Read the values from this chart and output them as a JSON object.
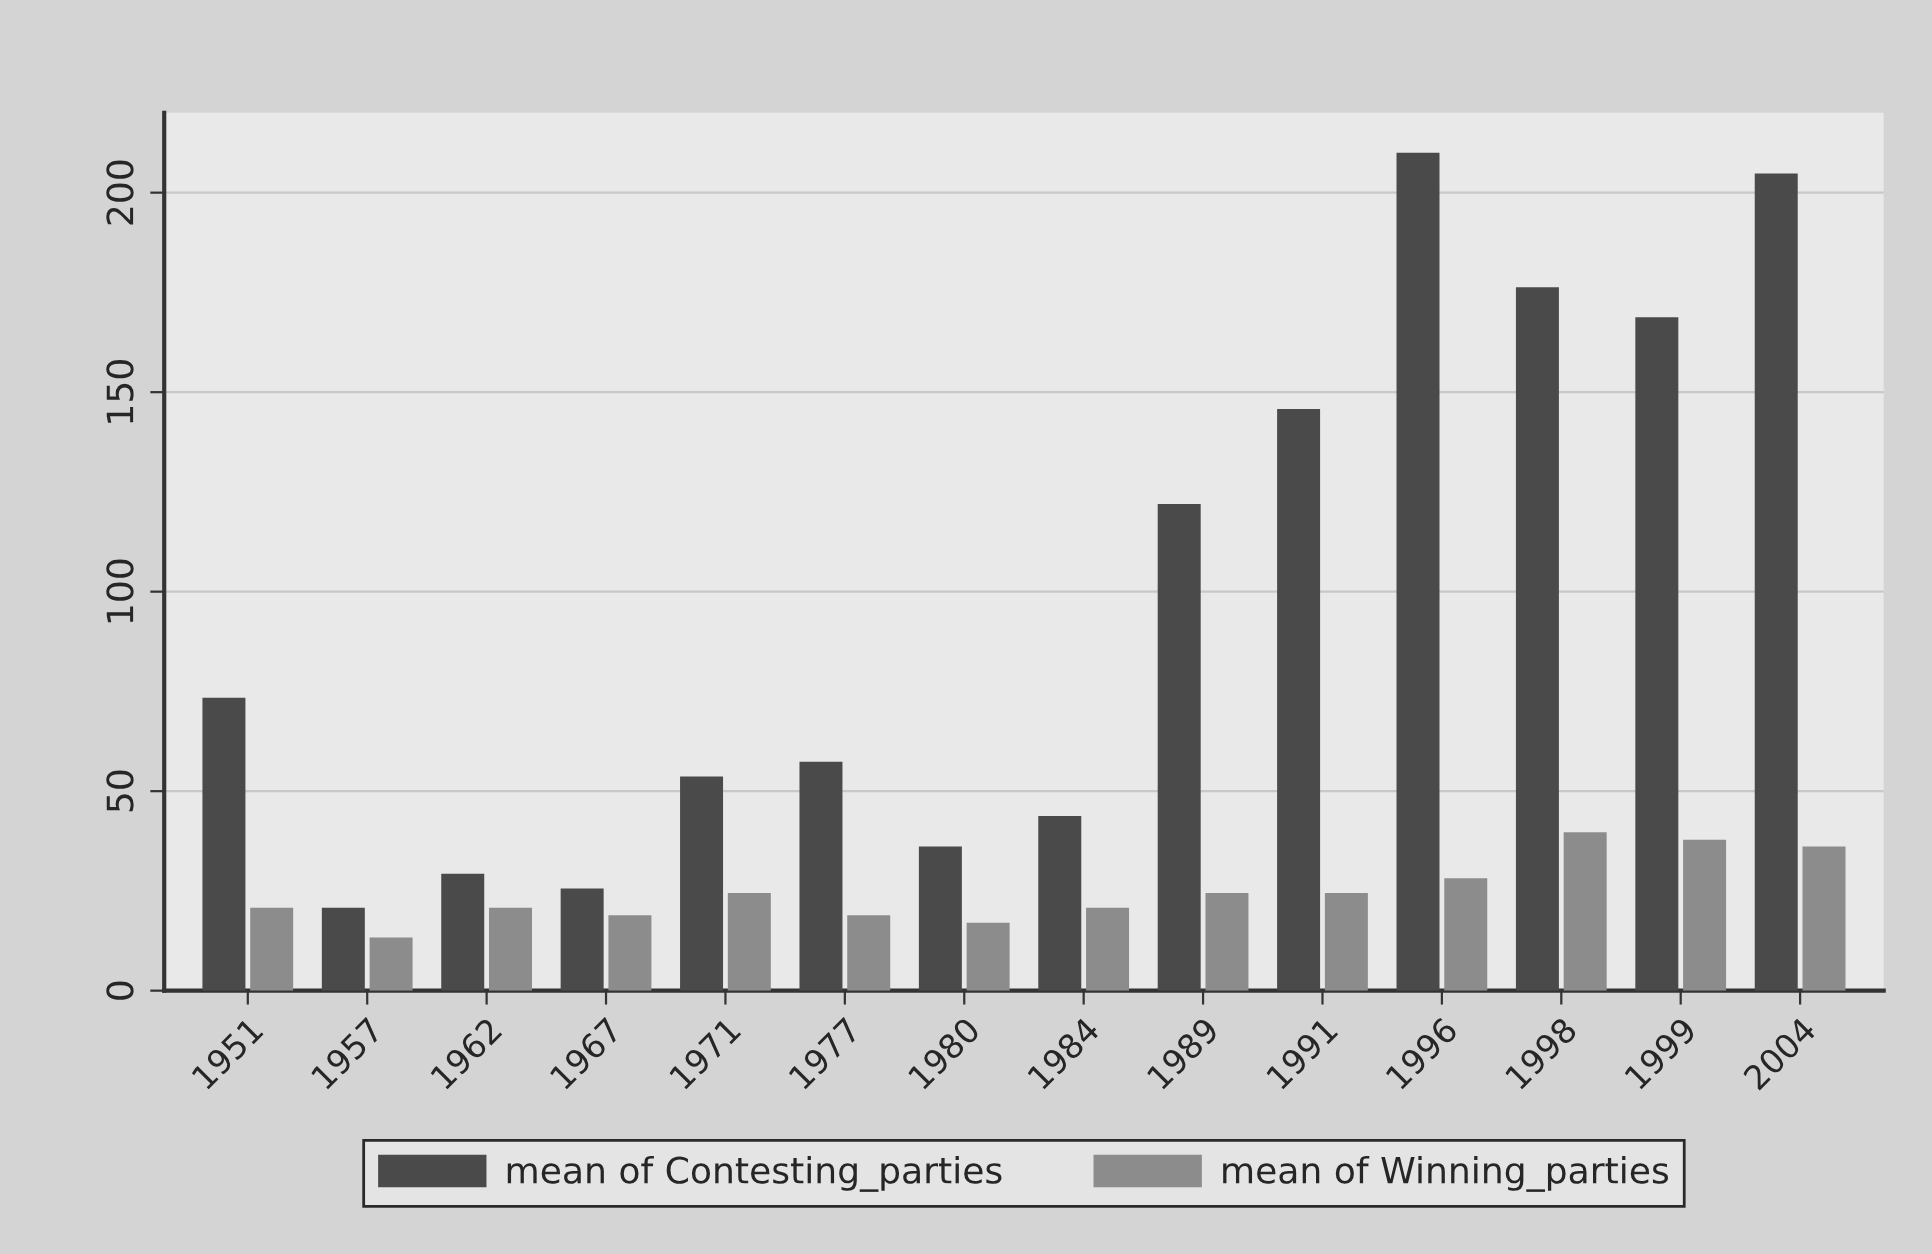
{
  "chart_data": {
    "type": "bar",
    "categories": [
      "1951",
      "1957",
      "1962",
      "1967",
      "1971",
      "1977",
      "1980",
      "1984",
      "1989",
      "1991",
      "1996",
      "1998",
      "1999",
      "2004"
    ],
    "series": [
      {
        "name": "mean of Contesting_parties",
        "color": "#4a4a4a",
        "values": [
          73.4,
          20.8,
          29.3,
          25.6,
          53.7,
          57.4,
          36.1,
          43.8,
          122,
          145.8,
          210,
          176.3,
          168.8,
          204.8
        ]
      },
      {
        "name": "mean of Winning_parties",
        "color": "#8c8c8c",
        "values": [
          20.8,
          13.3,
          20.8,
          18.9,
          24.5,
          18.9,
          17,
          20.8,
          24.5,
          24.5,
          28.2,
          39.7,
          37.8,
          36.1
        ]
      }
    ],
    "ylim": [
      0,
      220
    ],
    "yticks": [
      0,
      50,
      100,
      150,
      200
    ],
    "grid": "y",
    "legend": "bottom"
  }
}
